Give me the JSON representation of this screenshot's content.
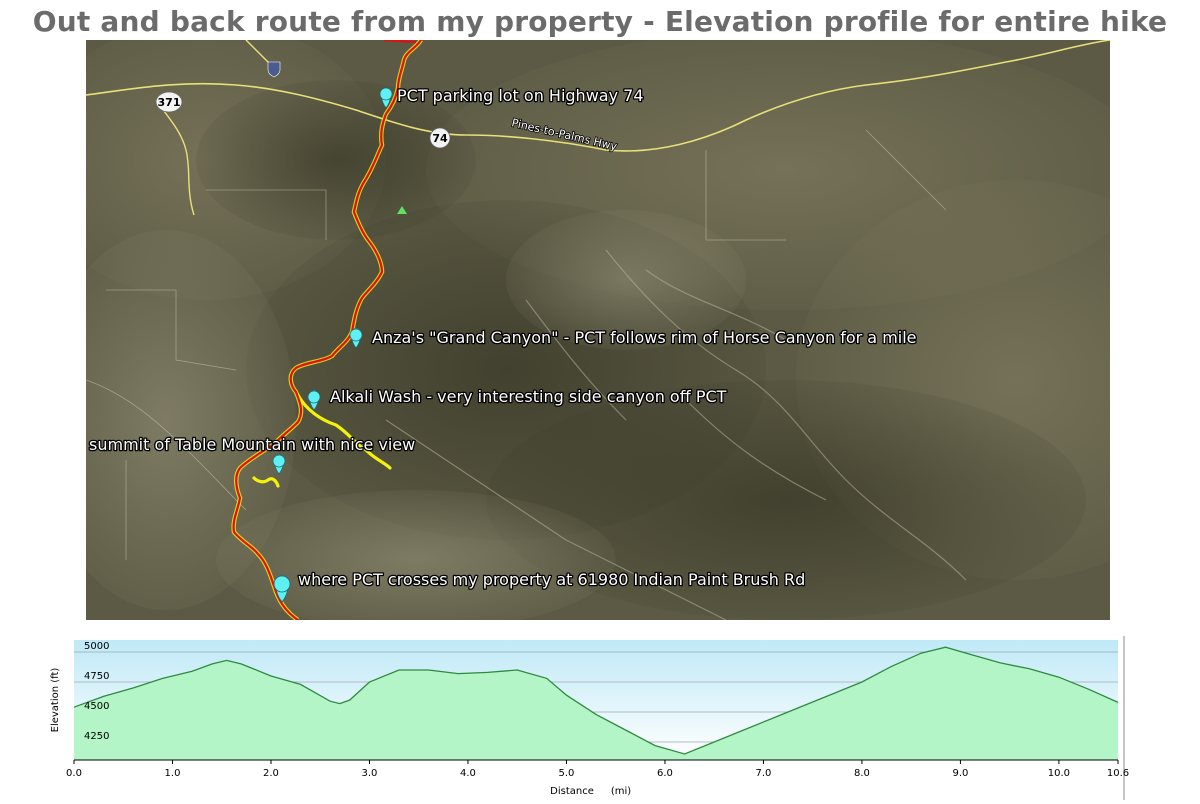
{
  "title": "Out and back route from my property - Elevation profile for entire hike",
  "map": {
    "roads": {
      "highway_371": "371",
      "highway_74": "74",
      "road_name": "Pines-to-Palms Hwy"
    },
    "markers": [
      {
        "label": "PCT parking lot on Highway 74"
      },
      {
        "label": "Anza's \"Grand Canyon\" - PCT follows rim of Horse Canyon for a mile"
      },
      {
        "label": "Alkali Wash - very interesting side canyon off PCT"
      },
      {
        "label": "summit of Table Mountain with nice view"
      },
      {
        "label": "where PCT crosses my property at 61980 Indian Paint Brush Rd"
      }
    ],
    "colors": {
      "trail": "#e01010",
      "side_trail": "#f2f20a",
      "highway": "#e8e079",
      "marker": "#5ef0f2"
    }
  },
  "chart_data": {
    "type": "area",
    "xlabel": "Distance",
    "xunit": "(mi)",
    "ylabel": "Elevation (ft)",
    "xlim": [
      0.0,
      10.6
    ],
    "ylim": [
      4100,
      5100
    ],
    "x_ticks": [
      "0.0",
      "1.0",
      "2.0",
      "3.0",
      "4.0",
      "5.0",
      "6.0",
      "7.0",
      "8.0",
      "9.0",
      "10.0",
      "10.6"
    ],
    "y_ticks": [
      "5000",
      "4750",
      "4500",
      "4250"
    ],
    "grid": true,
    "fill_color": "#b3f5c7",
    "line_color": "#2e8b3e",
    "series": [
      {
        "x": [
          0.0,
          0.3,
          0.6,
          0.9,
          1.2,
          1.4,
          1.55,
          1.7,
          2.0,
          2.3,
          2.6,
          2.7,
          2.8,
          3.0,
          3.3,
          3.6,
          3.9,
          4.2,
          4.5,
          4.8,
          5.0,
          5.3,
          5.6,
          5.9,
          6.2,
          6.5,
          6.8,
          7.1,
          7.4,
          7.7,
          8.0,
          8.3,
          8.6,
          8.85,
          9.1,
          9.4,
          9.7,
          10.0,
          10.3,
          10.6
        ],
        "y": [
          4540,
          4630,
          4700,
          4780,
          4840,
          4900,
          4930,
          4900,
          4800,
          4730,
          4590,
          4570,
          4600,
          4750,
          4850,
          4850,
          4820,
          4830,
          4850,
          4780,
          4640,
          4480,
          4350,
          4220,
          4150,
          4250,
          4350,
          4450,
          4550,
          4650,
          4750,
          4880,
          4990,
          5040,
          4980,
          4910,
          4860,
          4790,
          4690,
          4580
        ]
      }
    ]
  }
}
